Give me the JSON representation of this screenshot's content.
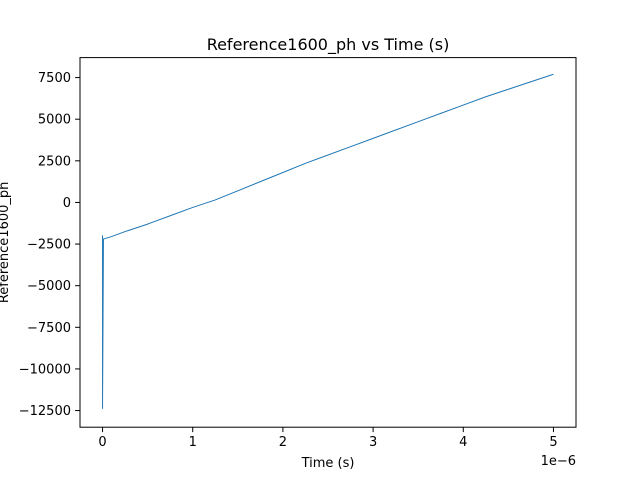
{
  "chart_data": {
    "type": "line",
    "title": "Reference1600_ph vs Time (s)",
    "xlabel": "Time (s)",
    "ylabel": "Reference1600_ph",
    "x_offset_text": "1e−6",
    "x_scale": 1e-06,
    "xlim": [
      -0.25,
      5.25
    ],
    "ylim": [
      -13500,
      8700
    ],
    "x_ticks": [
      0,
      1,
      2,
      3,
      4,
      5
    ],
    "x_tick_labels": [
      "0",
      "1",
      "2",
      "3",
      "4",
      "5"
    ],
    "y_ticks": [
      -12500,
      -10000,
      -7500,
      -5000,
      -2500,
      0,
      2500,
      5000,
      7500
    ],
    "y_tick_labels": [
      "−12500",
      "−10000",
      "−7500",
      "−5000",
      "−2500",
      "0",
      "2500",
      "5000",
      "7500"
    ],
    "grid": false,
    "series": [
      {
        "color": "#1f77b4",
        "x": [
          0,
          0,
          0,
          0.01,
          0.1,
          0.25,
          0.5,
          0.75,
          1.0,
          1.25,
          1.5,
          1.75,
          2.0,
          2.25,
          2.5,
          2.75,
          3.0,
          3.25,
          3.5,
          3.75,
          4.0,
          4.25,
          4.5,
          4.75,
          5.0
        ],
        "y": [
          -12400,
          -2000,
          -12000,
          -2200,
          -2050,
          -1750,
          -1300,
          -800,
          -300,
          150,
          700,
          1250,
          1800,
          2350,
          2850,
          3350,
          3850,
          4350,
          4850,
          5350,
          5850,
          6350,
          6800,
          7250,
          7700
        ]
      }
    ]
  }
}
